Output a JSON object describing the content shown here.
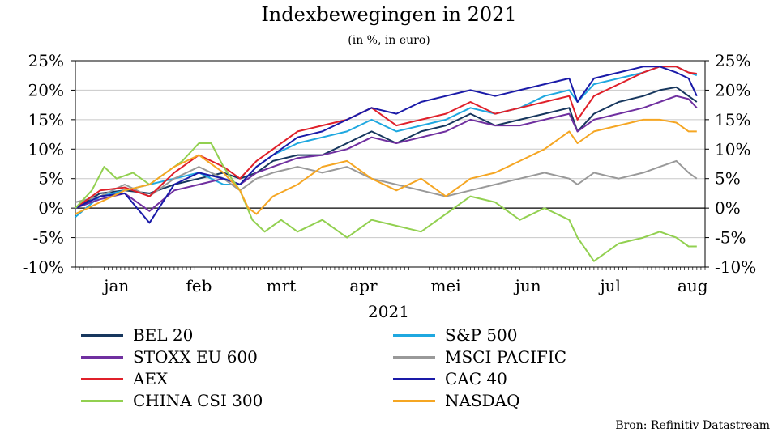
{
  "title": "Indexbewegingen in 2021",
  "subtitle": "(in %, in euro)",
  "source": "Bron: Refinitiv Datastream",
  "chart_data": {
    "type": "line",
    "x_label": "2021",
    "x_ticks": [
      "jan",
      "feb",
      "mrt",
      "apr",
      "mei",
      "jun",
      "jul",
      "aug"
    ],
    "x_range": [
      0,
      7.65
    ],
    "y_range": [
      -10,
      25
    ],
    "y_ticks": [
      "-10%",
      "-5%",
      "0%",
      "5%",
      "10%",
      "15%",
      "20%",
      "25%"
    ],
    "y_ticks_right": [
      "-10%",
      "-5%",
      "0%",
      "5%",
      "10%",
      "15%",
      "20%",
      "25%"
    ],
    "zero_line": true,
    "grid": "horizontal",
    "legend_position": "bottom",
    "series": [
      {
        "name": "BEL 20",
        "color": "#17375e",
        "points": [
          [
            0,
            0
          ],
          [
            0.3,
            2.5
          ],
          [
            0.6,
            3
          ],
          [
            0.9,
            2.5
          ],
          [
            1.2,
            4
          ],
          [
            1.5,
            5
          ],
          [
            1.8,
            6
          ],
          [
            2.0,
            5
          ],
          [
            2.2,
            6
          ],
          [
            2.4,
            8
          ],
          [
            2.7,
            9
          ],
          [
            3.0,
            9
          ],
          [
            3.3,
            11
          ],
          [
            3.6,
            13
          ],
          [
            3.9,
            11
          ],
          [
            4.2,
            13
          ],
          [
            4.5,
            14
          ],
          [
            4.8,
            16
          ],
          [
            5.1,
            14
          ],
          [
            5.4,
            15
          ],
          [
            5.7,
            16
          ],
          [
            6.0,
            17
          ],
          [
            6.1,
            13
          ],
          [
            6.3,
            16
          ],
          [
            6.6,
            18
          ],
          [
            6.9,
            19
          ],
          [
            7.1,
            20
          ],
          [
            7.3,
            20.5
          ],
          [
            7.45,
            19
          ],
          [
            7.55,
            18
          ]
        ]
      },
      {
        "name": "S&P 500",
        "color": "#1fa8e0",
        "points": [
          [
            0,
            -1.5
          ],
          [
            0.3,
            2
          ],
          [
            0.6,
            3
          ],
          [
            0.9,
            4
          ],
          [
            1.2,
            5
          ],
          [
            1.5,
            6
          ],
          [
            1.8,
            4
          ],
          [
            2.0,
            4
          ],
          [
            2.2,
            7
          ],
          [
            2.4,
            9
          ],
          [
            2.7,
            11
          ],
          [
            3.0,
            12
          ],
          [
            3.3,
            13
          ],
          [
            3.6,
            15
          ],
          [
            3.9,
            13
          ],
          [
            4.2,
            14
          ],
          [
            4.5,
            15
          ],
          [
            4.8,
            17
          ],
          [
            5.1,
            16
          ],
          [
            5.4,
            17
          ],
          [
            5.7,
            19
          ],
          [
            6.0,
            20
          ],
          [
            6.1,
            18
          ],
          [
            6.3,
            21
          ],
          [
            6.6,
            22
          ],
          [
            6.9,
            23
          ],
          [
            7.1,
            24
          ],
          [
            7.3,
            24
          ],
          [
            7.45,
            23
          ],
          [
            7.55,
            22.5
          ]
        ]
      },
      {
        "name": "STOXX EU 600",
        "color": "#7030a0",
        "points": [
          [
            0,
            0
          ],
          [
            0.3,
            1.5
          ],
          [
            0.6,
            2.5
          ],
          [
            0.9,
            -0.5
          ],
          [
            1.2,
            3
          ],
          [
            1.5,
            4
          ],
          [
            1.8,
            5
          ],
          [
            2.0,
            4
          ],
          [
            2.2,
            6
          ],
          [
            2.4,
            7
          ],
          [
            2.7,
            8.5
          ],
          [
            3.0,
            9
          ],
          [
            3.3,
            10
          ],
          [
            3.6,
            12
          ],
          [
            3.9,
            11
          ],
          [
            4.2,
            12
          ],
          [
            4.5,
            13
          ],
          [
            4.8,
            15
          ],
          [
            5.1,
            14
          ],
          [
            5.4,
            14
          ],
          [
            5.7,
            15
          ],
          [
            6.0,
            16
          ],
          [
            6.1,
            13
          ],
          [
            6.3,
            15
          ],
          [
            6.6,
            16
          ],
          [
            6.9,
            17
          ],
          [
            7.1,
            18
          ],
          [
            7.3,
            19
          ],
          [
            7.45,
            18.5
          ],
          [
            7.55,
            17
          ]
        ]
      },
      {
        "name": "MSCI PACIFIC",
        "color": "#999999",
        "points": [
          [
            0,
            1
          ],
          [
            0.3,
            2
          ],
          [
            0.6,
            4
          ],
          [
            0.9,
            2
          ],
          [
            1.2,
            5
          ],
          [
            1.5,
            7
          ],
          [
            1.8,
            5
          ],
          [
            2.0,
            3
          ],
          [
            2.2,
            5
          ],
          [
            2.4,
            6
          ],
          [
            2.7,
            7
          ],
          [
            3.0,
            6
          ],
          [
            3.3,
            7
          ],
          [
            3.6,
            5
          ],
          [
            3.9,
            4
          ],
          [
            4.2,
            3
          ],
          [
            4.5,
            2
          ],
          [
            4.8,
            3
          ],
          [
            5.1,
            4
          ],
          [
            5.4,
            5
          ],
          [
            5.7,
            6
          ],
          [
            6.0,
            5
          ],
          [
            6.1,
            4
          ],
          [
            6.3,
            6
          ],
          [
            6.6,
            5
          ],
          [
            6.9,
            6
          ],
          [
            7.1,
            7
          ],
          [
            7.3,
            8
          ],
          [
            7.45,
            6
          ],
          [
            7.55,
            5
          ]
        ]
      },
      {
        "name": "AEX",
        "color": "#e0202a",
        "points": [
          [
            0,
            0
          ],
          [
            0.3,
            3
          ],
          [
            0.6,
            3.5
          ],
          [
            0.9,
            2
          ],
          [
            1.2,
            6
          ],
          [
            1.5,
            9
          ],
          [
            1.8,
            7
          ],
          [
            2.0,
            5
          ],
          [
            2.2,
            8
          ],
          [
            2.4,
            10
          ],
          [
            2.7,
            13
          ],
          [
            3.0,
            14
          ],
          [
            3.3,
            15
          ],
          [
            3.6,
            17
          ],
          [
            3.9,
            14
          ],
          [
            4.2,
            15
          ],
          [
            4.5,
            16
          ],
          [
            4.8,
            18
          ],
          [
            5.1,
            16
          ],
          [
            5.4,
            17
          ],
          [
            5.7,
            18
          ],
          [
            6.0,
            19
          ],
          [
            6.1,
            15
          ],
          [
            6.3,
            19
          ],
          [
            6.6,
            21
          ],
          [
            6.9,
            23
          ],
          [
            7.1,
            24
          ],
          [
            7.3,
            24
          ],
          [
            7.45,
            23
          ],
          [
            7.55,
            22.8
          ]
        ]
      },
      {
        "name": "CAC 40",
        "color": "#1a1aa8",
        "points": [
          [
            0,
            0
          ],
          [
            0.3,
            2
          ],
          [
            0.6,
            2.5
          ],
          [
            0.9,
            -2.5
          ],
          [
            1.2,
            4
          ],
          [
            1.5,
            6
          ],
          [
            1.8,
            5
          ],
          [
            2.0,
            4
          ],
          [
            2.2,
            7
          ],
          [
            2.4,
            9
          ],
          [
            2.7,
            12
          ],
          [
            3.0,
            13
          ],
          [
            3.3,
            15
          ],
          [
            3.6,
            17
          ],
          [
            3.9,
            16
          ],
          [
            4.2,
            18
          ],
          [
            4.5,
            19
          ],
          [
            4.8,
            20
          ],
          [
            5.1,
            19
          ],
          [
            5.4,
            20
          ],
          [
            5.7,
            21
          ],
          [
            6.0,
            22
          ],
          [
            6.1,
            18
          ],
          [
            6.3,
            22
          ],
          [
            6.6,
            23
          ],
          [
            6.9,
            24
          ],
          [
            7.1,
            24
          ],
          [
            7.3,
            23
          ],
          [
            7.45,
            22
          ],
          [
            7.55,
            19
          ]
        ]
      },
      {
        "name": "CHINA CSI 300",
        "color": "#92d050",
        "points": [
          [
            0,
            0
          ],
          [
            0.2,
            3
          ],
          [
            0.35,
            7
          ],
          [
            0.5,
            5
          ],
          [
            0.7,
            6
          ],
          [
            0.9,
            4
          ],
          [
            1.1,
            6
          ],
          [
            1.3,
            8
          ],
          [
            1.5,
            11
          ],
          [
            1.65,
            11
          ],
          [
            1.8,
            7
          ],
          [
            2.0,
            3
          ],
          [
            2.15,
            -2
          ],
          [
            2.3,
            -4
          ],
          [
            2.5,
            -2
          ],
          [
            2.7,
            -4
          ],
          [
            3.0,
            -2
          ],
          [
            3.3,
            -5
          ],
          [
            3.6,
            -2
          ],
          [
            3.9,
            -3
          ],
          [
            4.2,
            -4
          ],
          [
            4.5,
            -1
          ],
          [
            4.8,
            2
          ],
          [
            5.1,
            1
          ],
          [
            5.4,
            -2
          ],
          [
            5.7,
            0
          ],
          [
            6.0,
            -2
          ],
          [
            6.1,
            -5
          ],
          [
            6.3,
            -9
          ],
          [
            6.6,
            -6
          ],
          [
            6.9,
            -5
          ],
          [
            7.1,
            -4
          ],
          [
            7.3,
            -5
          ],
          [
            7.45,
            -6.5
          ],
          [
            7.55,
            -6.5
          ]
        ]
      },
      {
        "name": "NASDAQ",
        "color": "#f5a623",
        "points": [
          [
            0,
            -1
          ],
          [
            0.3,
            1
          ],
          [
            0.6,
            3
          ],
          [
            0.9,
            4
          ],
          [
            1.2,
            7
          ],
          [
            1.5,
            9
          ],
          [
            1.8,
            6
          ],
          [
            2.0,
            3
          ],
          [
            2.1,
            0
          ],
          [
            2.2,
            -1
          ],
          [
            2.4,
            2
          ],
          [
            2.7,
            4
          ],
          [
            3.0,
            7
          ],
          [
            3.3,
            8
          ],
          [
            3.6,
            5
          ],
          [
            3.9,
            3
          ],
          [
            4.2,
            5
          ],
          [
            4.5,
            2
          ],
          [
            4.8,
            5
          ],
          [
            5.1,
            6
          ],
          [
            5.4,
            8
          ],
          [
            5.7,
            10
          ],
          [
            6.0,
            13
          ],
          [
            6.1,
            11
          ],
          [
            6.3,
            13
          ],
          [
            6.6,
            14
          ],
          [
            6.9,
            15
          ],
          [
            7.1,
            15
          ],
          [
            7.3,
            14.5
          ],
          [
            7.45,
            13
          ],
          [
            7.55,
            13
          ]
        ]
      }
    ]
  },
  "legend_left": [
    "BEL 20",
    "STOXX EU 600",
    "AEX",
    "CHINA CSI 300"
  ],
  "legend_right": [
    "S&P 500",
    "MSCI PACIFIC",
    "CAC 40",
    "NASDAQ"
  ]
}
